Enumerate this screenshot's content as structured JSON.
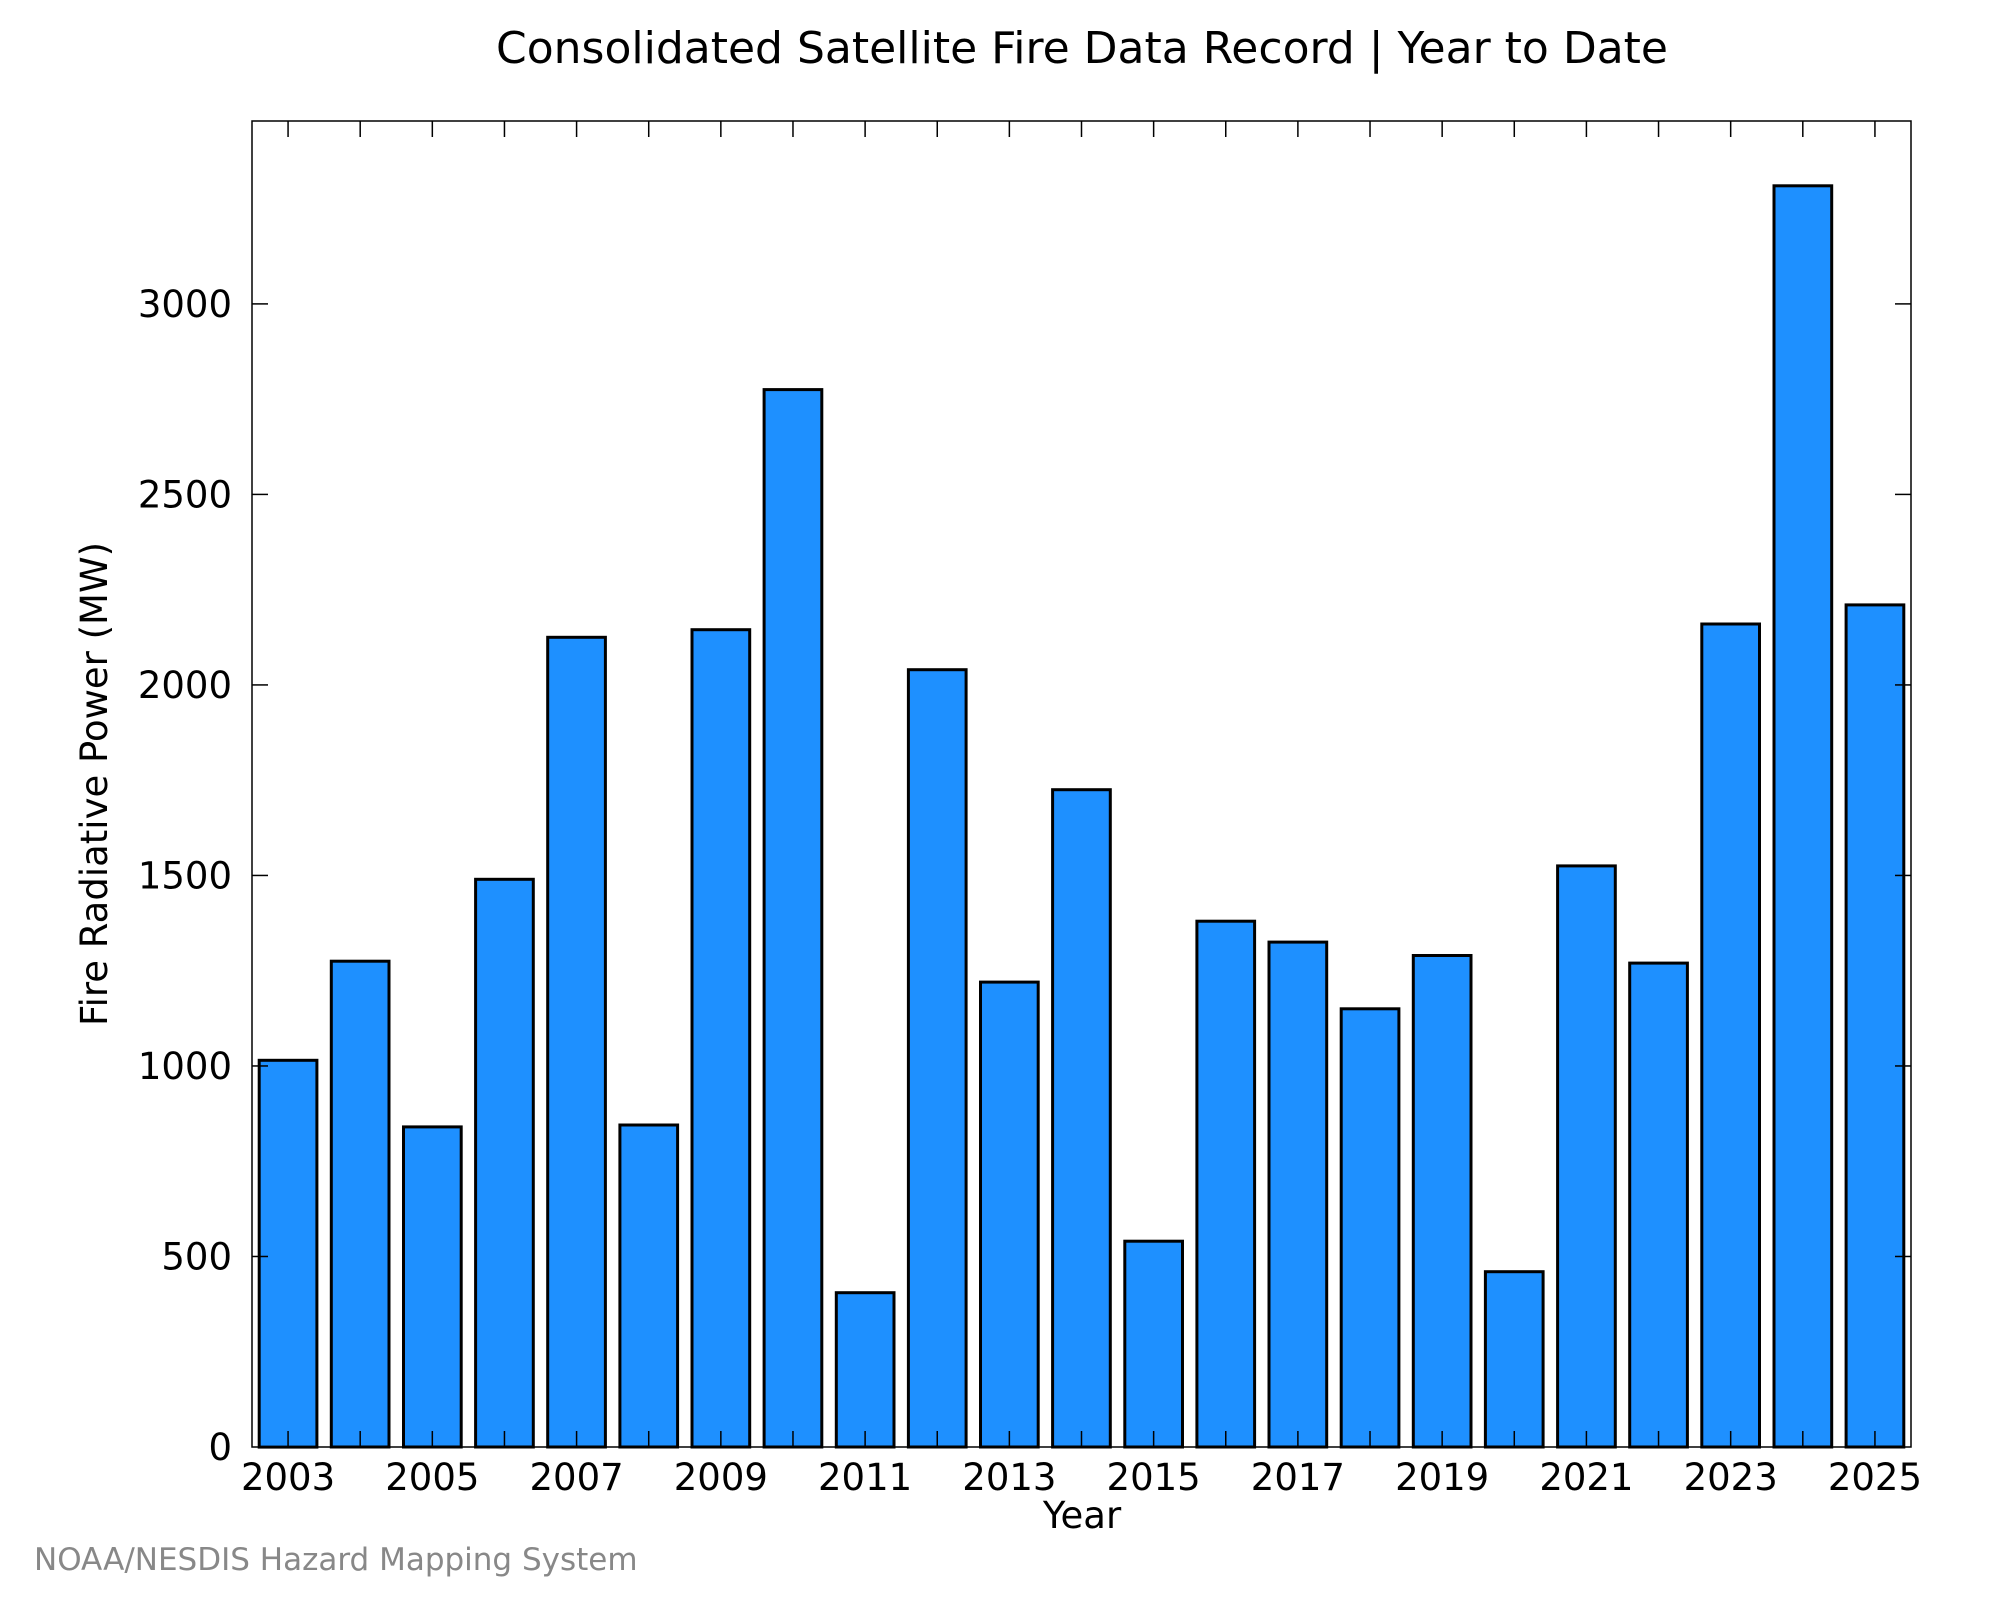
{
  "chart_data": {
    "type": "bar",
    "title": "Consolidated Satellite Fire Data Record | Year to Date",
    "xlabel": "Year",
    "ylabel": "Fire Radiative Power (MW)",
    "categories": [
      2003,
      2004,
      2005,
      2006,
      2007,
      2008,
      2009,
      2010,
      2011,
      2012,
      2013,
      2014,
      2015,
      2016,
      2017,
      2018,
      2019,
      2020,
      2021,
      2022,
      2023,
      2024,
      2025
    ],
    "values": [
      1015,
      1275,
      840,
      1490,
      2125,
      845,
      2145,
      2775,
      405,
      2040,
      1220,
      1725,
      540,
      1380,
      1325,
      1150,
      1290,
      460,
      1525,
      1270,
      2160,
      3310,
      2210
    ],
    "x_tick_labels": [
      "2003",
      "2005",
      "2007",
      "2009",
      "2011",
      "2013",
      "2015",
      "2017",
      "2019",
      "2021",
      "2023",
      "2025"
    ],
    "y_tick_labels": [
      "0",
      "500",
      "1000",
      "1500",
      "2000",
      "2500",
      "3000"
    ],
    "y_ticks": [
      0,
      500,
      1000,
      1500,
      2000,
      2500,
      3000
    ],
    "ylim": [
      0,
      3480
    ],
    "xlim": [
      2002.5,
      2025.5
    ],
    "bar_color": "#1E90FF",
    "grid": false,
    "legend": "none"
  },
  "footer": {
    "credit": "NOAA/NESDIS Hazard Mapping System"
  }
}
